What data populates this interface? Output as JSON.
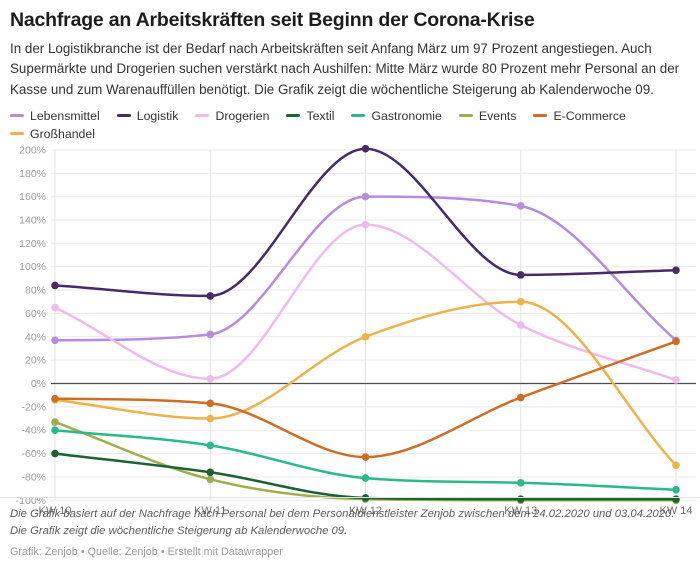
{
  "header": {
    "title": "Nachfrage an Arbeitskräften seit Beginn der Corona-Krise",
    "description": "In der Logistikbranche ist der Bedarf nach Arbeitskräften seit Anfang März um 97 Prozent angestiegen. Auch Supermärkte und Drogerien suchen verstärkt nach Aushilfen: Mitte März wurde 80 Prozent mehr Personal an der Kasse und zum Warenauffüllen benötigt. Die Grafik zeigt die wöchentliche Steigerung ab Kalenderwoche 09."
  },
  "chart_data": {
    "type": "line",
    "title": "Nachfrage an Arbeitskräften seit Beginn der Corona-Krise",
    "xlabel": "",
    "ylabel": "",
    "categories": [
      "KW 10",
      "KW 11",
      "KW 12",
      "KW 13",
      "KW 14"
    ],
    "series": [
      {
        "name": "Lebensmittel",
        "color": "#b68be0",
        "values": [
          37,
          42,
          160,
          152,
          37
        ]
      },
      {
        "name": "Logistik",
        "color": "#472a68",
        "values": [
          84,
          75,
          201,
          93,
          97
        ]
      },
      {
        "name": "Drogerien",
        "color": "#f0baef",
        "values": [
          65,
          4,
          136,
          50,
          3
        ]
      },
      {
        "name": "Textil",
        "color": "#1b6332",
        "values": [
          -60,
          -76,
          -98,
          -99,
          -99
        ]
      },
      {
        "name": "Gastronomie",
        "color": "#2aba8a",
        "values": [
          -40,
          -53,
          -81,
          -85,
          -91
        ]
      },
      {
        "name": "Events",
        "color": "#a0ad4d",
        "values": [
          -33,
          -82,
          -99,
          -100,
          -100
        ]
      },
      {
        "name": "E-Commerce",
        "color": "#cd6e27",
        "values": [
          -13,
          -17,
          -63,
          -12,
          36
        ]
      },
      {
        "name": "Großhandel",
        "color": "#ecb34a",
        "values": [
          -14,
          -30,
          40,
          70,
          -70
        ]
      }
    ],
    "ylim": [
      -100,
      200
    ],
    "y_tick_step": 20,
    "y_tick_suffix": "%",
    "grid": true,
    "legend_position": "top"
  },
  "footer": {
    "note": "Die Grafik basiert auf der Nachfrage nach Personal bei dem Personaldienstleister Zenjob zwischen dem 24.02.2020 und 03.04.2020. Die Grafik zeigt die wöchentliche Steigerung ab Kalenderwoche 09.",
    "credit_graphic": "Grafik: Zenjob",
    "credit_source": "Quelle: Zenjob",
    "credit_tool": "Erstellt mit Datawrapper",
    "separator": "•"
  }
}
